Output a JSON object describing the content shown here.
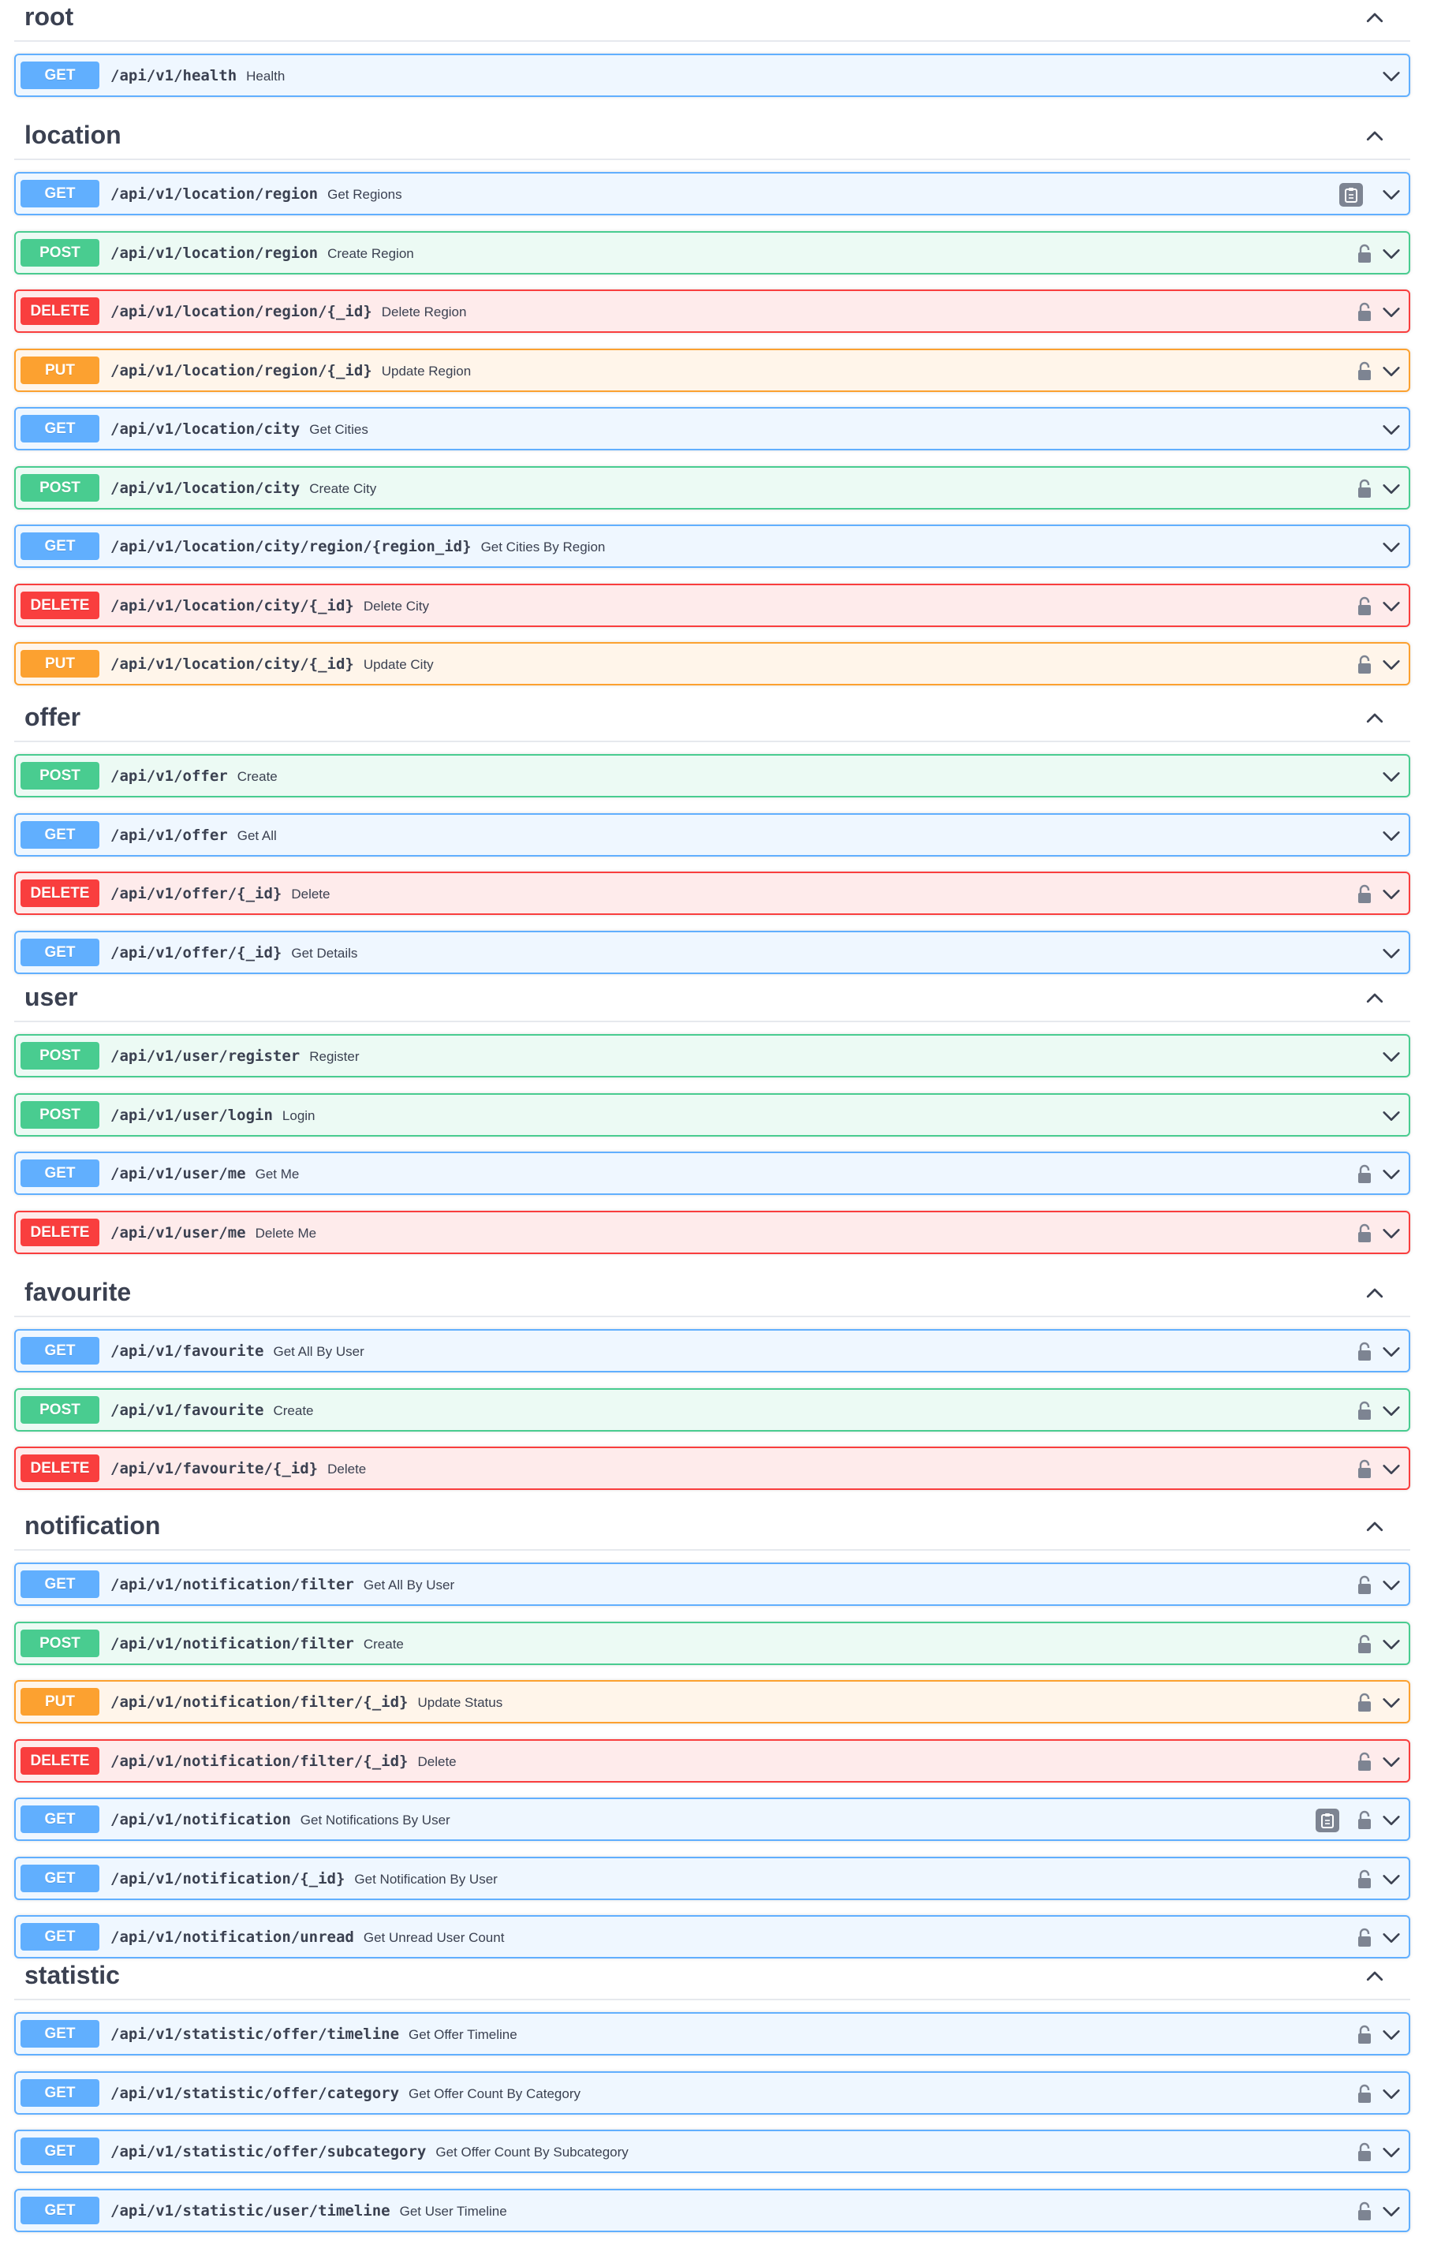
{
  "sections": [
    {
      "name": "root",
      "operations": [
        {
          "method": "GET",
          "path": "/api/v1/health",
          "summary": "Health",
          "lock": false,
          "copy": false
        }
      ]
    },
    {
      "name": "location",
      "operations": [
        {
          "method": "GET",
          "path": "/api/v1/location/region",
          "summary": "Get Regions",
          "lock": false,
          "copy": true
        },
        {
          "method": "POST",
          "path": "/api/v1/location/region",
          "summary": "Create Region",
          "lock": true,
          "copy": false
        },
        {
          "method": "DELETE",
          "path": "/api/v1/location/region/{_id}",
          "summary": "Delete Region",
          "lock": true,
          "copy": false
        },
        {
          "method": "PUT",
          "path": "/api/v1/location/region/{_id}",
          "summary": "Update Region",
          "lock": true,
          "copy": false
        },
        {
          "method": "GET",
          "path": "/api/v1/location/city",
          "summary": "Get Cities",
          "lock": false,
          "copy": false
        },
        {
          "method": "POST",
          "path": "/api/v1/location/city",
          "summary": "Create City",
          "lock": true,
          "copy": false
        },
        {
          "method": "GET",
          "path": "/api/v1/location/city/region/{region_id}",
          "summary": "Get Cities By Region",
          "lock": false,
          "copy": false
        },
        {
          "method": "DELETE",
          "path": "/api/v1/location/city/{_id}",
          "summary": "Delete City",
          "lock": true,
          "copy": false
        },
        {
          "method": "PUT",
          "path": "/api/v1/location/city/{_id}",
          "summary": "Update City",
          "lock": true,
          "copy": false
        }
      ]
    },
    {
      "name": "offer",
      "operations": [
        {
          "method": "POST",
          "path": "/api/v1/offer",
          "summary": "Create",
          "lock": false,
          "copy": false
        },
        {
          "method": "GET",
          "path": "/api/v1/offer",
          "summary": "Get All",
          "lock": false,
          "copy": false
        },
        {
          "method": "DELETE",
          "path": "/api/v1/offer/{_id}",
          "summary": "Delete",
          "lock": true,
          "copy": false
        },
        {
          "method": "GET",
          "path": "/api/v1/offer/{_id}",
          "summary": "Get Details",
          "lock": false,
          "copy": false
        }
      ]
    },
    {
      "name": "user",
      "operations": [
        {
          "method": "POST",
          "path": "/api/v1/user/register",
          "summary": "Register",
          "lock": false,
          "copy": false
        },
        {
          "method": "POST",
          "path": "/api/v1/user/login",
          "summary": "Login",
          "lock": false,
          "copy": false
        },
        {
          "method": "GET",
          "path": "/api/v1/user/me",
          "summary": "Get Me",
          "lock": true,
          "copy": false
        },
        {
          "method": "DELETE",
          "path": "/api/v1/user/me",
          "summary": "Delete Me",
          "lock": true,
          "copy": false
        }
      ]
    },
    {
      "name": "favourite",
      "operations": [
        {
          "method": "GET",
          "path": "/api/v1/favourite",
          "summary": "Get All By User",
          "lock": true,
          "copy": false
        },
        {
          "method": "POST",
          "path": "/api/v1/favourite",
          "summary": "Create",
          "lock": true,
          "copy": false
        },
        {
          "method": "DELETE",
          "path": "/api/v1/favourite/{_id}",
          "summary": "Delete",
          "lock": true,
          "copy": false
        }
      ]
    },
    {
      "name": "notification",
      "operations": [
        {
          "method": "GET",
          "path": "/api/v1/notification/filter",
          "summary": "Get All By User",
          "lock": true,
          "copy": false
        },
        {
          "method": "POST",
          "path": "/api/v1/notification/filter",
          "summary": "Create",
          "lock": true,
          "copy": false
        },
        {
          "method": "PUT",
          "path": "/api/v1/notification/filter/{_id}",
          "summary": "Update Status",
          "lock": true,
          "copy": false
        },
        {
          "method": "DELETE",
          "path": "/api/v1/notification/filter/{_id}",
          "summary": "Delete",
          "lock": true,
          "copy": false
        },
        {
          "method": "GET",
          "path": "/api/v1/notification",
          "summary": "Get Notifications By User",
          "lock": true,
          "copy": true
        },
        {
          "method": "GET",
          "path": "/api/v1/notification/{_id}",
          "summary": "Get Notification By User",
          "lock": true,
          "copy": false
        },
        {
          "method": "GET",
          "path": "/api/v1/notification/unread",
          "summary": "Get Unread User Count",
          "lock": true,
          "copy": false
        }
      ]
    },
    {
      "name": "statistic",
      "operations": [
        {
          "method": "GET",
          "path": "/api/v1/statistic/offer/timeline",
          "summary": "Get Offer Timeline",
          "lock": true,
          "copy": false
        },
        {
          "method": "GET",
          "path": "/api/v1/statistic/offer/category",
          "summary": "Get Offer Count By Category",
          "lock": true,
          "copy": false
        },
        {
          "method": "GET",
          "path": "/api/v1/statistic/offer/subcategory",
          "summary": "Get Offer Count By Subcategory",
          "lock": true,
          "copy": false
        },
        {
          "method": "GET",
          "path": "/api/v1/statistic/user/timeline",
          "summary": "Get User Timeline",
          "lock": true,
          "copy": false
        }
      ]
    }
  ]
}
